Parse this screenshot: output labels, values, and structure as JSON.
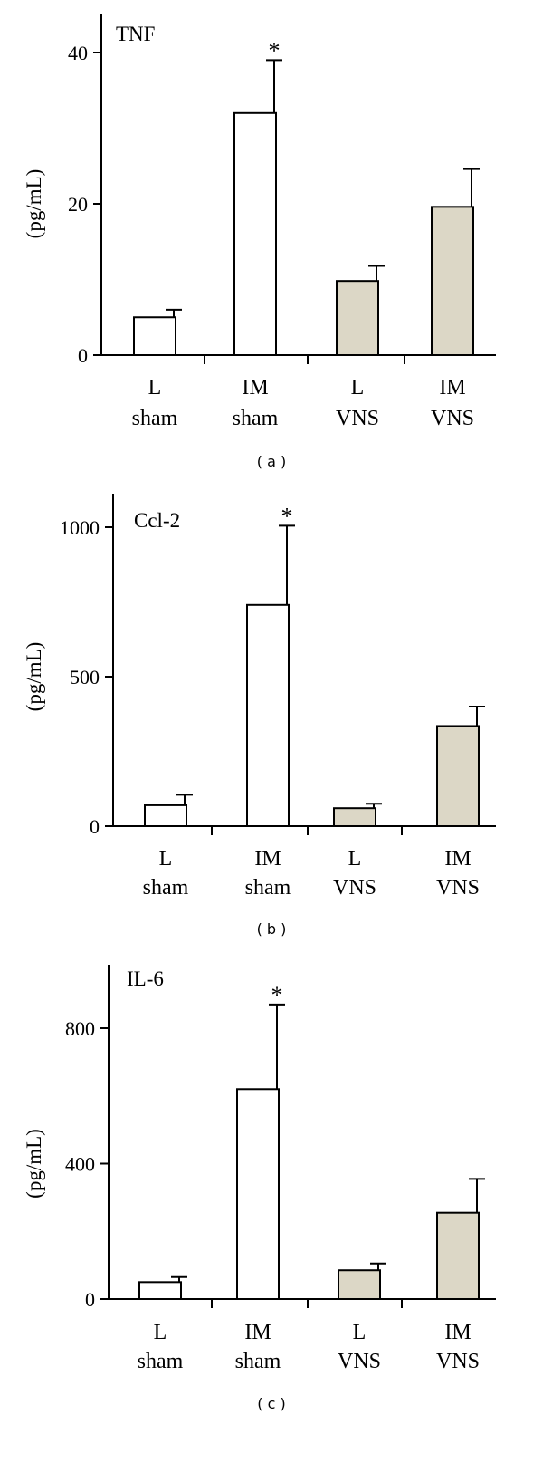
{
  "chart_data": [
    {
      "type": "bar",
      "panel_label": "( a )",
      "title": "TNF",
      "ylabel": "(pg/mL)",
      "ylim": [
        0,
        40
      ],
      "yticks": [
        "0",
        "20",
        "40"
      ],
      "categories": [
        [
          "L",
          "sham"
        ],
        [
          "IM",
          "sham"
        ],
        [
          "L",
          "VNS"
        ],
        [
          "IM",
          "VNS"
        ]
      ],
      "values": [
        5,
        32,
        9.8,
        19.6
      ],
      "errors": [
        1,
        7,
        2,
        5
      ],
      "significance": [
        "",
        "*",
        "",
        ""
      ],
      "colors": [
        "#ffffff",
        "#ffffff",
        "#dcd7c6",
        "#dcd7c6"
      ]
    },
    {
      "type": "bar",
      "panel_label": "( b )",
      "title": "Ccl-2",
      "ylabel": "(pg/mL)",
      "ylim": [
        0,
        1000
      ],
      "yticks": [
        "0",
        "500",
        "1000"
      ],
      "categories": [
        [
          "L",
          "sham"
        ],
        [
          "IM",
          "sham"
        ],
        [
          "L",
          "VNS"
        ],
        [
          "IM",
          "VNS"
        ]
      ],
      "values": [
        70,
        740,
        60,
        335
      ],
      "errors": [
        35,
        265,
        15,
        65
      ],
      "significance": [
        "",
        "*",
        "",
        ""
      ],
      "colors": [
        "#ffffff",
        "#ffffff",
        "#dcd7c6",
        "#dcd7c6"
      ]
    },
    {
      "type": "bar",
      "panel_label": "( c )",
      "title": "IL-6",
      "ylabel": "(pg/mL)",
      "ylim": [
        0,
        800
      ],
      "yticks": [
        "0",
        "400",
        "800"
      ],
      "categories": [
        [
          "L",
          "sham"
        ],
        [
          "IM",
          "sham"
        ],
        [
          "L",
          "VNS"
        ],
        [
          "IM",
          "VNS"
        ]
      ],
      "values": [
        50,
        620,
        85,
        255
      ],
      "errors": [
        15,
        250,
        20,
        100
      ],
      "significance": [
        "",
        "*",
        "",
        ""
      ],
      "colors": [
        "#ffffff",
        "#ffffff",
        "#dcd7c6",
        "#dcd7c6"
      ]
    }
  ]
}
